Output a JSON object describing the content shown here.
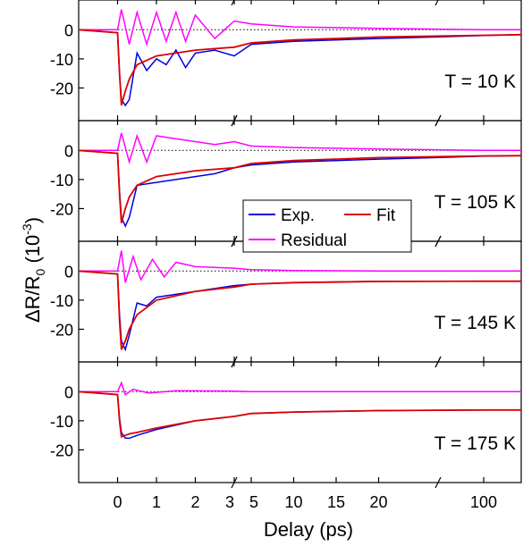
{
  "figure": {
    "xlabel": "Delay (ps)",
    "ylabel_main": "ΔR/R",
    "ylabel_sub": "0",
    "ylabel_paren_open": " (10",
    "ylabel_exp": "-3",
    "ylabel_paren_close": ")"
  },
  "legend": {
    "placement": "center, spanning panels 2-3",
    "items": [
      {
        "label": "Exp.",
        "color": "#0000dd"
      },
      {
        "label": "Fit",
        "color": "#dd0000"
      },
      {
        "label": "Residual",
        "color": "#ff00ff"
      }
    ]
  },
  "chart_data": {
    "type": "line",
    "xlabel": "Delay (ps)",
    "ylabel": "ΔR/R0 (10^-3)",
    "x_axis": {
      "kind": "broken",
      "segments": [
        {
          "range": [
            -1,
            3
          ],
          "ticks": [
            "0",
            "1",
            "2",
            "3"
          ]
        },
        {
          "range": [
            3,
            27
          ],
          "ticks": [
            "5",
            "10",
            "15",
            "20"
          ]
        },
        {
          "range": [
            27,
            160
          ],
          "ticks": [
            "100"
          ]
        }
      ],
      "tick_values": [
        0,
        1,
        2,
        3,
        5,
        10,
        15,
        20,
        100
      ]
    },
    "zero_reference": "dotted line at 0",
    "panels": [
      {
        "label": "T = 10 K",
        "ylim": [
          -30,
          9
        ],
        "yticks": [
          0,
          -10,
          -20
        ],
        "ytick_labels": [
          "0",
          "-10",
          "-20"
        ],
        "exp": {
          "x": [
            -1,
            0,
            0.05,
            0.1,
            0.2,
            0.3,
            0.5,
            0.75,
            1,
            1.25,
            1.5,
            1.75,
            2,
            2.5,
            3,
            5,
            10,
            20,
            100,
            160
          ],
          "y": [
            0,
            -1,
            -15,
            -24,
            -26,
            -24,
            -8,
            -14,
            -10,
            -12,
            -7,
            -13,
            -8,
            -7,
            -9,
            -5,
            -4,
            -3,
            -2,
            -1.7
          ]
        },
        "fit": {
          "x": [
            -1,
            0,
            0.05,
            0.1,
            0.2,
            0.3,
            0.5,
            1,
            2,
            3,
            5,
            10,
            20,
            100,
            160
          ],
          "y": [
            0,
            -1,
            -15,
            -26,
            -21,
            -17,
            -12,
            -9,
            -7,
            -6,
            -4.5,
            -3.5,
            -2.5,
            -1.9,
            -1.7
          ]
        },
        "residual": {
          "x": [
            -1,
            0,
            0.1,
            0.3,
            0.5,
            0.75,
            1,
            1.25,
            1.5,
            1.75,
            2,
            2.5,
            3,
            5,
            10,
            20,
            100,
            160
          ],
          "y": [
            0,
            0,
            7,
            -5,
            6,
            -5,
            6,
            -4,
            6,
            -4,
            5,
            -3,
            3,
            2,
            1,
            0.5,
            0,
            0
          ]
        }
      },
      {
        "label": "T = 105 K",
        "ylim": [
          -30,
          9
        ],
        "yticks": [
          0,
          -10,
          -20
        ],
        "ytick_labels": [
          "0",
          "-10",
          "-20"
        ],
        "exp": {
          "x": [
            -1,
            0,
            0.05,
            0.1,
            0.2,
            0.3,
            0.5,
            1,
            1.5,
            2,
            2.5,
            3,
            5,
            10,
            20,
            100,
            160
          ],
          "y": [
            0,
            -1,
            -14,
            -23,
            -26,
            -23,
            -12,
            -11,
            -10,
            -9,
            -8,
            -6,
            -5,
            -4,
            -3,
            -2,
            -1.8
          ]
        },
        "fit": {
          "x": [
            -1,
            0,
            0.05,
            0.1,
            0.2,
            0.3,
            0.5,
            1,
            2,
            3,
            5,
            10,
            20,
            100,
            160
          ],
          "y": [
            0,
            -1,
            -15,
            -25,
            -20,
            -16,
            -12,
            -9,
            -7,
            -6,
            -4.5,
            -3.5,
            -2.5,
            -1.9,
            -1.8
          ]
        },
        "residual": {
          "x": [
            -1,
            0,
            0.1,
            0.3,
            0.5,
            0.75,
            1,
            1.5,
            2,
            2.5,
            3,
            5,
            10,
            20,
            100,
            160
          ],
          "y": [
            0,
            0,
            6,
            -4,
            5,
            -4,
            5,
            4,
            3,
            2,
            3,
            1.5,
            1,
            0.5,
            0,
            0
          ]
        }
      },
      {
        "label": "T = 145 K",
        "ylim": [
          -30,
          9
        ],
        "yticks": [
          0,
          -10,
          -20
        ],
        "ytick_labels": [
          "0",
          "-10",
          "-20"
        ],
        "exp": {
          "x": [
            -1,
            0,
            0.05,
            0.1,
            0.2,
            0.3,
            0.5,
            0.75,
            1,
            1.5,
            2,
            3,
            5,
            10,
            20,
            100,
            160
          ],
          "y": [
            0,
            -1,
            -15,
            -24,
            -27,
            -22,
            -11,
            -12,
            -9,
            -8,
            -7,
            -5,
            -4.5,
            -4,
            -3.5,
            -3.5,
            -3.5
          ]
        },
        "fit": {
          "x": [
            -1,
            0,
            0.05,
            0.1,
            0.2,
            0.3,
            0.5,
            1,
            2,
            3,
            5,
            10,
            20,
            100,
            160
          ],
          "y": [
            0,
            -1,
            -17,
            -27,
            -24,
            -20,
            -15,
            -10,
            -7,
            -5.5,
            -4.5,
            -4,
            -3.6,
            -3.5,
            -3.5
          ]
        },
        "residual": {
          "x": [
            -1,
            0,
            0.1,
            0.2,
            0.4,
            0.6,
            0.9,
            1.2,
            1.5,
            2,
            3,
            5,
            10,
            20,
            100,
            160
          ],
          "y": [
            0,
            0,
            7,
            -4,
            5,
            -3,
            4,
            -2,
            3,
            1.5,
            1,
            0.5,
            0.2,
            0,
            0,
            0
          ]
        }
      },
      {
        "label": "T = 175 K",
        "ylim": [
          -30,
          9
        ],
        "yticks": [
          0,
          -10,
          -20
        ],
        "ytick_labels": [
          "0",
          "-10",
          "-20"
        ],
        "exp": {
          "x": [
            -1,
            0,
            0.05,
            0.1,
            0.2,
            0.3,
            0.5,
            1,
            2,
            3,
            5,
            10,
            20,
            100,
            160
          ],
          "y": [
            0,
            -1,
            -9,
            -14,
            -16,
            -16,
            -15,
            -13,
            -10,
            -8.5,
            -7.5,
            -7,
            -6.5,
            -6.3,
            -6.3
          ]
        },
        "fit": {
          "x": [
            -1,
            0,
            0.05,
            0.1,
            0.2,
            0.3,
            0.5,
            1,
            2,
            3,
            5,
            10,
            20,
            100,
            160
          ],
          "y": [
            0,
            -1,
            -10,
            -15.5,
            -15,
            -14.5,
            -14,
            -12.5,
            -10,
            -8.5,
            -7.5,
            -7,
            -6.5,
            -6.3,
            -6.3
          ]
        },
        "residual": {
          "x": [
            -1,
            0,
            0.1,
            0.2,
            0.4,
            0.8,
            1.5,
            3,
            5,
            20,
            100,
            160
          ],
          "y": [
            0,
            0,
            3,
            -1,
            0.8,
            -0.5,
            0.3,
            0.2,
            0,
            0,
            0,
            0
          ]
        }
      }
    ]
  }
}
